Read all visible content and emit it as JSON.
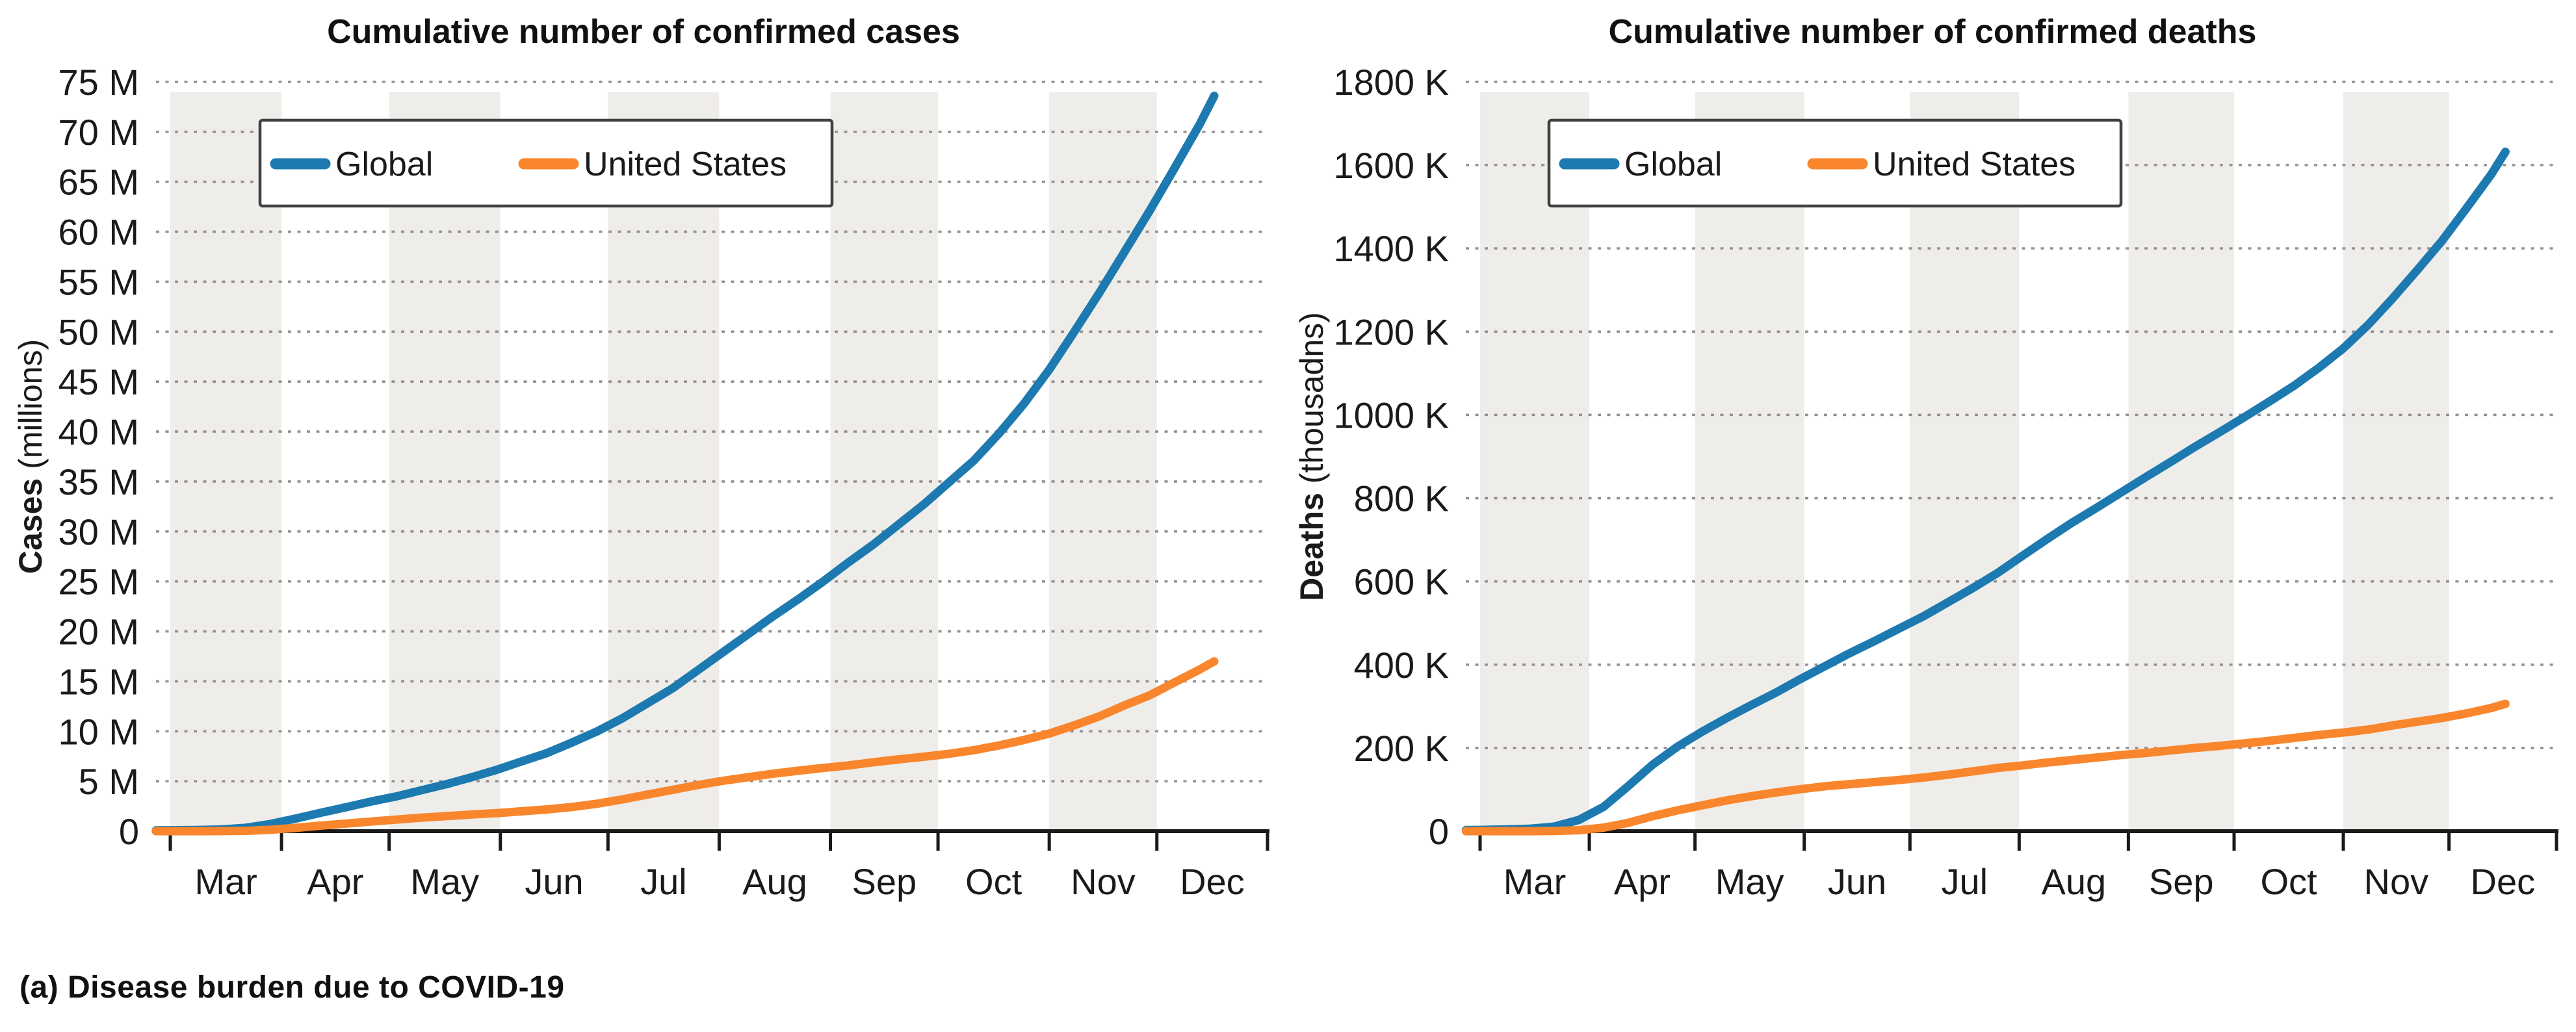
{
  "figure": {
    "caption": "(a) Disease burden due to COVID-19",
    "background_color": "#ffffff",
    "band_color": "#efedea",
    "grid_color": "#949090",
    "axis_color": "#1a1a1a",
    "text_color": "#1a1a1a",
    "legend_border_color": "#404040",
    "legend": {
      "items": [
        {
          "label": "Global",
          "color": "#1c7ab0"
        },
        {
          "label": "United States",
          "color": "#f9862c"
        }
      ]
    }
  },
  "chart_data": [
    {
      "type": "line",
      "title": "Cumulative number of confirmed cases",
      "ylabel": "Cases",
      "ylabel_unit": " (millions)",
      "x_tick_labels": [
        "Mar",
        "Apr",
        "May",
        "Jun",
        "Jul",
        "Aug",
        "Sep",
        "Oct",
        "Nov",
        "Dec"
      ],
      "month_start_days": [
        0,
        31,
        61,
        92,
        122,
        153,
        184,
        214,
        245,
        275
      ],
      "shaded_months": [
        "Mar",
        "May",
        "Jul",
        "Sep",
        "Nov"
      ],
      "ylim": [
        0,
        75
      ],
      "y_tick_step": 5,
      "y_tick_labels": [
        "0",
        "5 M",
        "10 M",
        "15 M",
        "20 M",
        "25 M",
        "30 M",
        "35 M",
        "40 M",
        "45 M",
        "50 M",
        "55 M",
        "60 M",
        "65 M",
        "70 M",
        "75 M"
      ],
      "grid_style": "dotted",
      "legend_position": "upper left",
      "series": [
        {
          "name": "Global",
          "color": "#1c7ab0",
          "points": [
            [
              -4,
              0.08
            ],
            [
              0,
              0.09
            ],
            [
              7,
              0.11
            ],
            [
              14,
              0.17
            ],
            [
              21,
              0.34
            ],
            [
              28,
              0.72
            ],
            [
              35,
              1.27
            ],
            [
              42,
              1.85
            ],
            [
              49,
              2.4
            ],
            [
              56,
              2.97
            ],
            [
              63,
              3.48
            ],
            [
              70,
              4.1
            ],
            [
              77,
              4.71
            ],
            [
              84,
              5.4
            ],
            [
              91,
              6.15
            ],
            [
              98,
              6.99
            ],
            [
              105,
              7.82
            ],
            [
              112,
              8.88
            ],
            [
              119,
              10.0
            ],
            [
              126,
              11.3
            ],
            [
              133,
              12.8
            ],
            [
              140,
              14.3
            ],
            [
              147,
              16.1
            ],
            [
              154,
              17.9
            ],
            [
              161,
              19.7
            ],
            [
              168,
              21.5
            ],
            [
              175,
              23.2
            ],
            [
              182,
              25.0
            ],
            [
              189,
              26.9
            ],
            [
              196,
              28.7
            ],
            [
              203,
              30.7
            ],
            [
              210,
              32.7
            ],
            [
              217,
              34.9
            ],
            [
              224,
              37.1
            ],
            [
              231,
              39.8
            ],
            [
              238,
              42.8
            ],
            [
              245,
              46.2
            ],
            [
              252,
              50.0
            ],
            [
              259,
              53.9
            ],
            [
              266,
              58.0
            ],
            [
              273,
              62.1
            ],
            [
              280,
              66.4
            ],
            [
              287,
              70.8
            ],
            [
              291,
              73.6
            ]
          ]
        },
        {
          "name": "United States",
          "color": "#f9862c",
          "points": [
            [
              -4,
              0
            ],
            [
              0,
              0
            ],
            [
              7,
              0
            ],
            [
              14,
              0.004
            ],
            [
              21,
              0.033
            ],
            [
              28,
              0.14
            ],
            [
              35,
              0.33
            ],
            [
              42,
              0.56
            ],
            [
              49,
              0.76
            ],
            [
              56,
              0.96
            ],
            [
              63,
              1.16
            ],
            [
              70,
              1.35
            ],
            [
              77,
              1.51
            ],
            [
              84,
              1.67
            ],
            [
              91,
              1.81
            ],
            [
              98,
              1.99
            ],
            [
              105,
              2.18
            ],
            [
              112,
              2.42
            ],
            [
              119,
              2.75
            ],
            [
              126,
              3.18
            ],
            [
              133,
              3.67
            ],
            [
              140,
              4.14
            ],
            [
              147,
              4.62
            ],
            [
              154,
              5.04
            ],
            [
              161,
              5.4
            ],
            [
              168,
              5.75
            ],
            [
              175,
              6.05
            ],
            [
              182,
              6.33
            ],
            [
              189,
              6.58
            ],
            [
              196,
              6.9
            ],
            [
              203,
              7.19
            ],
            [
              210,
              7.45
            ],
            [
              217,
              7.74
            ],
            [
              224,
              8.11
            ],
            [
              231,
              8.58
            ],
            [
              238,
              9.13
            ],
            [
              245,
              9.77
            ],
            [
              252,
              10.6
            ],
            [
              259,
              11.5
            ],
            [
              266,
              12.6
            ],
            [
              273,
              13.6
            ],
            [
              280,
              14.9
            ],
            [
              287,
              16.2
            ],
            [
              291,
              17.0
            ]
          ]
        }
      ]
    },
    {
      "type": "line",
      "title": "Cumulative number of confirmed deaths",
      "ylabel": "Deaths",
      "ylabel_unit": " (thousadns)",
      "x_tick_labels": [
        "Mar",
        "Apr",
        "May",
        "Jun",
        "Jul",
        "Aug",
        "Sep",
        "Oct",
        "Nov",
        "Dec"
      ],
      "month_start_days": [
        0,
        31,
        61,
        92,
        122,
        153,
        184,
        214,
        245,
        275
      ],
      "shaded_months": [
        "Mar",
        "May",
        "Jul",
        "Sep",
        "Nov"
      ],
      "ylim": [
        0,
        1800
      ],
      "y_tick_step": 200,
      "y_tick_labels": [
        "0",
        "200 K",
        "400 K",
        "600 K",
        "800 K",
        "1000 K",
        "1200 K",
        "1400 K",
        "1600 K",
        "1800 K"
      ],
      "grid_style": "dotted",
      "legend_position": "upper left",
      "series": [
        {
          "name": "Global",
          "color": "#1c7ab0",
          "points": [
            [
              -4,
              2.7
            ],
            [
              0,
              3
            ],
            [
              7,
              4
            ],
            [
              14,
              5.8
            ],
            [
              21,
              11
            ],
            [
              28,
              27
            ],
            [
              35,
              58
            ],
            [
              42,
              108
            ],
            [
              49,
              160
            ],
            [
              56,
              203
            ],
            [
              63,
              239
            ],
            [
              70,
              272
            ],
            [
              77,
              303
            ],
            [
              84,
              333
            ],
            [
              91,
              366
            ],
            [
              98,
              397
            ],
            [
              105,
              428
            ],
            [
              112,
              457
            ],
            [
              119,
              487
            ],
            [
              126,
              517
            ],
            [
              133,
              551
            ],
            [
              140,
              585
            ],
            [
              147,
              621
            ],
            [
              154,
              662
            ],
            [
              161,
              702
            ],
            [
              168,
              741
            ],
            [
              175,
              777
            ],
            [
              182,
              814
            ],
            [
              189,
              851
            ],
            [
              196,
              887
            ],
            [
              203,
              924
            ],
            [
              210,
              959
            ],
            [
              217,
              995
            ],
            [
              224,
              1032
            ],
            [
              231,
              1070
            ],
            [
              238,
              1113
            ],
            [
              245,
              1160
            ],
            [
              252,
              1216
            ],
            [
              259,
              1280
            ],
            [
              266,
              1348
            ],
            [
              273,
              1418
            ],
            [
              280,
              1497
            ],
            [
              287,
              1578
            ],
            [
              291,
              1632
            ]
          ]
        },
        {
          "name": "United States",
          "color": "#f9862c",
          "points": [
            [
              -4,
              0
            ],
            [
              0,
              0
            ],
            [
              7,
              0.02
            ],
            [
              14,
              0.06
            ],
            [
              21,
              0.4
            ],
            [
              28,
              2.3
            ],
            [
              35,
              8.4
            ],
            [
              42,
              20
            ],
            [
              49,
              36
            ],
            [
              56,
              50
            ],
            [
              63,
              62
            ],
            [
              70,
              74
            ],
            [
              77,
              84
            ],
            [
              84,
              93
            ],
            [
              91,
              101
            ],
            [
              98,
              108
            ],
            [
              105,
              113
            ],
            [
              112,
              118
            ],
            [
              119,
              123
            ],
            [
              126,
              129
            ],
            [
              133,
              136
            ],
            [
              140,
              144
            ],
            [
              147,
              152
            ],
            [
              154,
              158
            ],
            [
              161,
              165
            ],
            [
              168,
              171
            ],
            [
              175,
              177
            ],
            [
              182,
              183
            ],
            [
              189,
              188
            ],
            [
              196,
              194
            ],
            [
              203,
              200
            ],
            [
              210,
              205
            ],
            [
              217,
              211
            ],
            [
              224,
              217
            ],
            [
              231,
              224
            ],
            [
              238,
              231
            ],
            [
              245,
              237
            ],
            [
              252,
              244
            ],
            [
              259,
              254
            ],
            [
              266,
              263
            ],
            [
              273,
              272
            ],
            [
              280,
              283
            ],
            [
              287,
              296
            ],
            [
              291,
              306
            ]
          ]
        }
      ]
    }
  ]
}
